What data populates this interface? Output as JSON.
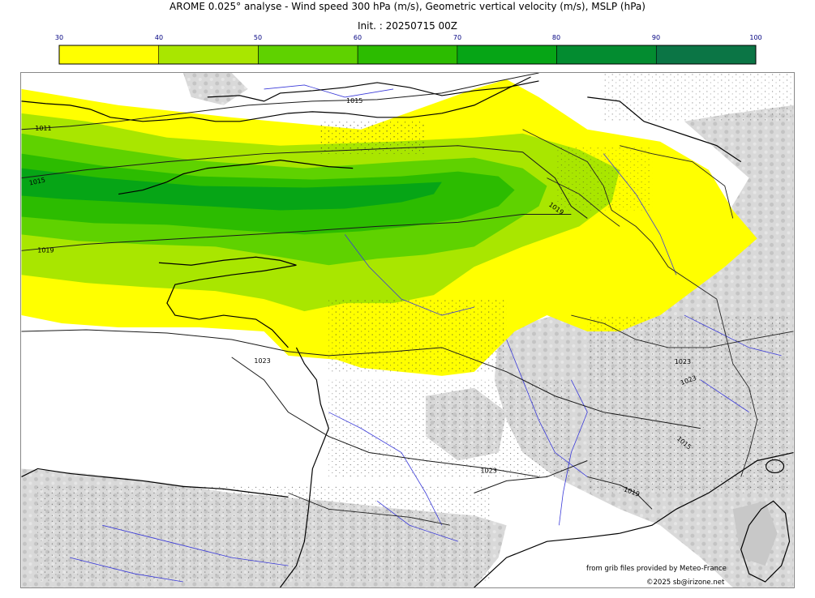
{
  "header": {
    "title": "AROME 0.025° analyse - Wind speed 300 hPa (m/s), Geometric vertical velocity (m/s), MSLP (hPa)",
    "subtitle": "Init. : 20250715 00Z"
  },
  "colorbar": {
    "ticks": [
      "30",
      "40",
      "50",
      "60",
      "70",
      "80",
      "90",
      "100"
    ],
    "colors": [
      "#ffff00",
      "#a9e600",
      "#5fd200",
      "#2cbc00",
      "#06a516",
      "#038c30",
      "#0b7545"
    ]
  },
  "map": {
    "isobar_labels": [
      "1015",
      "1011",
      "1015",
      "1019",
      "1023",
      "1019",
      "1023",
      "1023",
      "1023",
      "1015",
      "1019"
    ]
  },
  "footer": {
    "source": "from grib files provided by Meteo-France",
    "copyright": "©2025 sb@irizone.net"
  }
}
